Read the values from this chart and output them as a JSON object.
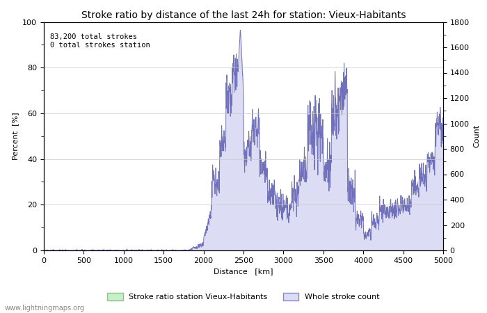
{
  "title": "Stroke ratio by distance of the last 24h for station: Vieux-Habitants",
  "xlabel": "Distance   [km]",
  "ylabel_left": "Percent  [%]",
  "ylabel_right": "Count",
  "annotation_line1": "83,200 total strokes",
  "annotation_line2": "0 total strokes station",
  "xlim": [
    0,
    5000
  ],
  "ylim_left": [
    0,
    100
  ],
  "ylim_right": [
    0,
    1800
  ],
  "xticks": [
    0,
    500,
    1000,
    1500,
    2000,
    2500,
    3000,
    3500,
    4000,
    4500,
    5000
  ],
  "yticks_left": [
    0,
    20,
    40,
    60,
    80,
    100
  ],
  "yticks_right": [
    0,
    200,
    400,
    600,
    800,
    1000,
    1200,
    1400,
    1600,
    1800
  ],
  "stroke_ratio_color_fill": "#c8f0c8",
  "stroke_ratio_color_edge": "#90c090",
  "whole_count_color_fill": "#dcdcf5",
  "whole_count_color_edge": "#8888cc",
  "line_color": "#7070bb",
  "background_color": "#ffffff",
  "grid_color": "#c8c8c8",
  "watermark": "www.lightningmaps.org",
  "legend_label_1": "Stroke ratio station Vieux-Habitants",
  "legend_label_2": "Whole stroke count",
  "title_fontsize": 10,
  "label_fontsize": 8,
  "tick_fontsize": 8
}
